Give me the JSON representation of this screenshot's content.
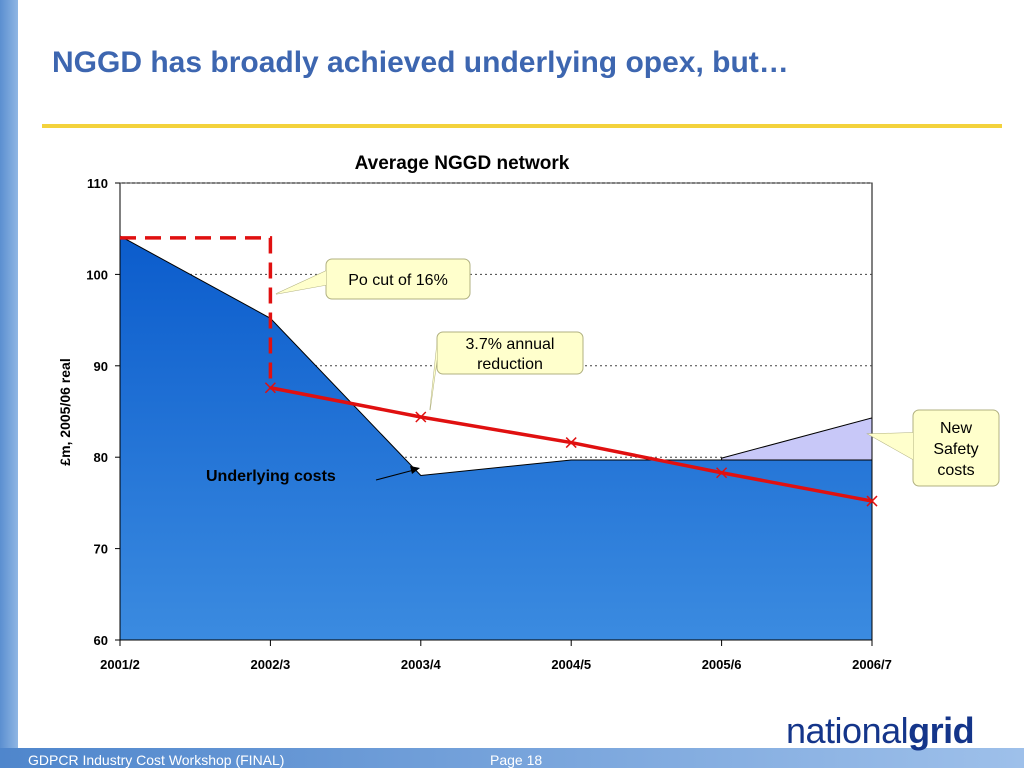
{
  "slide": {
    "title": "NGGD has broadly achieved underlying opex, but…",
    "footer_left": "GDPCR Industry Cost Workshop (FINAL)",
    "page_label": "Page 18",
    "logo_regular": "national",
    "logo_bold": "grid"
  },
  "chart_data": {
    "type": "area",
    "title": "Average NGGD network",
    "ylabel": "£m, 2005/06 real",
    "xlabel": "",
    "categories": [
      "2001/2",
      "2002/3",
      "2003/4",
      "2004/5",
      "2005/6",
      "2006/7"
    ],
    "ylim": [
      60,
      110
    ],
    "yticks": [
      60,
      70,
      80,
      90,
      100,
      110
    ],
    "grid": "horizontal dotted",
    "series": [
      {
        "kind": "area",
        "values": [
          104.2,
          95.2,
          78.0,
          79.7,
          79.7,
          79.7
        ],
        "color": "#2f7ad6"
      },
      {
        "kind": "area-stacked",
        "values": [
          null,
          null,
          null,
          null,
          79.9,
          84.3
        ],
        "color": "#c8c8f8"
      },
      {
        "kind": "line-markers",
        "values": [
          null,
          87.6,
          84.4,
          81.6,
          78.3,
          75.2
        ],
        "color": "#e01010"
      }
    ],
    "po_level": 104,
    "annotations": {
      "po_cut": "Po cut of 16%",
      "annual_reduction": "3.7% annual reduction",
      "new_safety_lines": [
        "New",
        "Safety",
        "costs"
      ],
      "underlying": "Underlying costs"
    }
  }
}
